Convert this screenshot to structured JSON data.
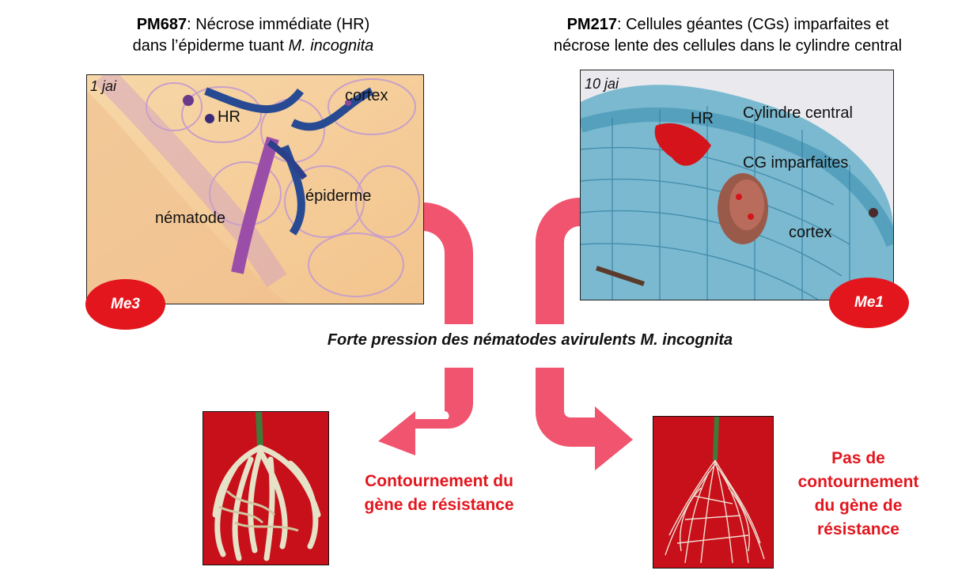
{
  "title_left": {
    "code": "PM687",
    "line1_rest": ": Nécrose immédiate (HR)",
    "line2_prefix": "dans l’épiderme tuant ",
    "line2_species": "M. incognita"
  },
  "title_right": {
    "code": "PM217",
    "line1_rest": ": Cellules géantes (CGs) imparfaites et",
    "line2": "nécrose lente des cellules dans le cylindre central"
  },
  "micrograph_left": {
    "time": "1 jai",
    "labels": {
      "hr": "HR",
      "cortex": "cortex",
      "epidermis": "épiderme",
      "nematode": "nématode"
    }
  },
  "micrograph_right": {
    "time": "10 jai",
    "labels": {
      "hr": "HR",
      "central_cylinder": "Cylindre central",
      "imperfect_gc": "CG imparfaites",
      "cortex": "cortex"
    }
  },
  "badges": {
    "left": "Me3",
    "right": "Me1"
  },
  "center_text": "Forte pression des nématodes avirulents M. incognita",
  "outcomes": {
    "left": [
      "Contournement du",
      "gène de résistance"
    ],
    "right": [
      "Pas de",
      "contournement",
      "du gène de",
      "résistance"
    ]
  },
  "colors": {
    "arrow": "#f0546e",
    "badge": "#e3161e",
    "outcome_text": "#e3161e",
    "photo_background": "#d01018"
  }
}
